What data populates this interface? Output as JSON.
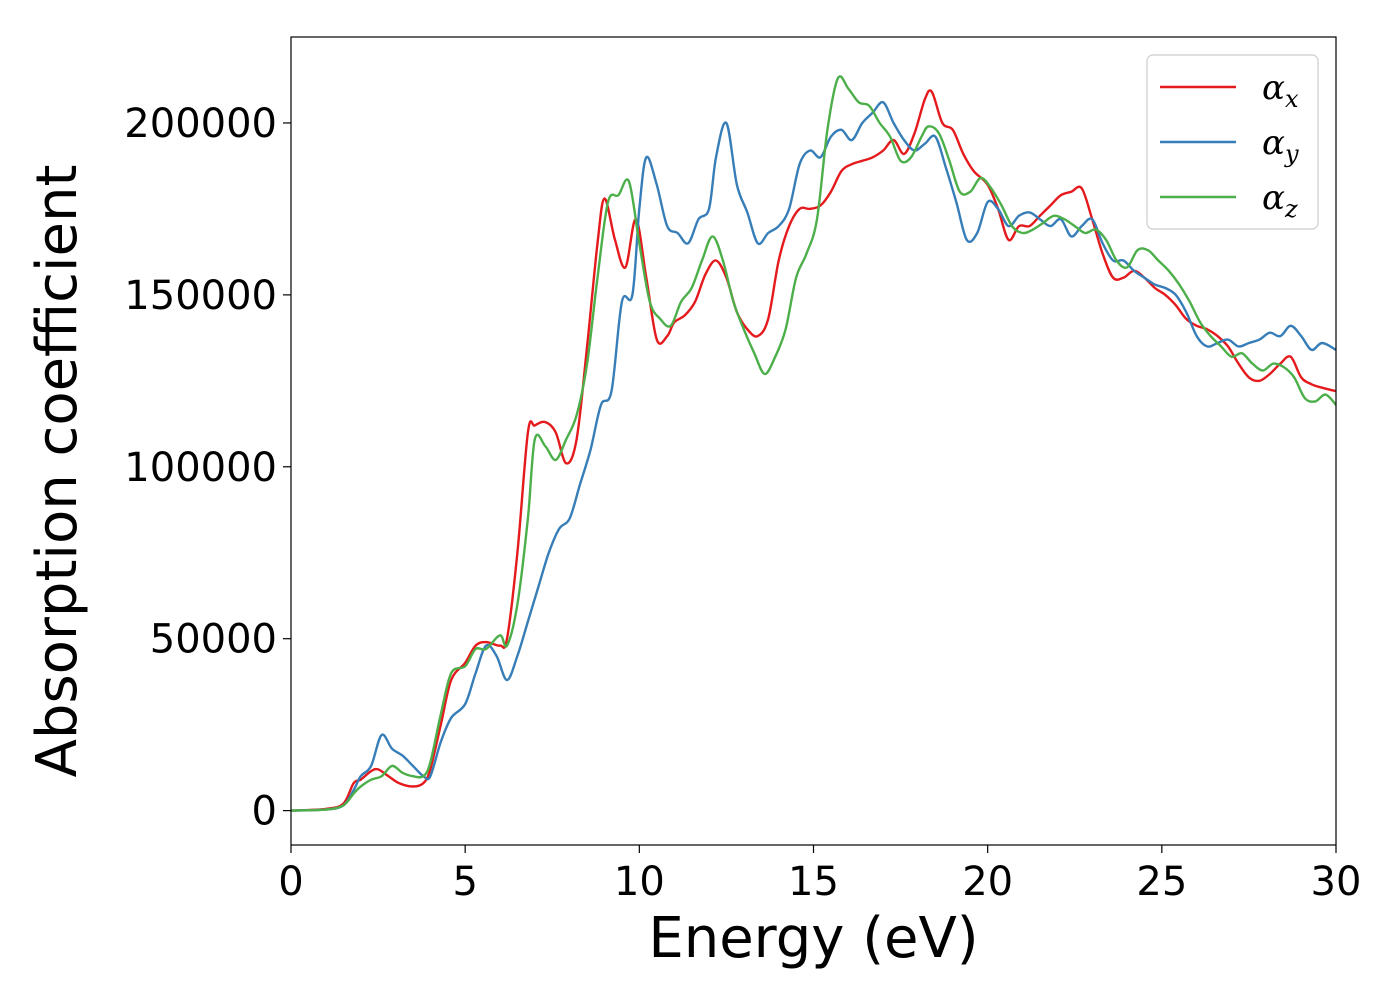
{
  "chart_data": {
    "type": "line",
    "title": "",
    "xlabel": "Energy (eV)",
    "ylabel": "Absorption coefficient",
    "xlim": [
      0,
      30
    ],
    "ylim": [
      -10000,
      225000
    ],
    "xticks": [
      0,
      5,
      10,
      15,
      20,
      25,
      30
    ],
    "xtick_labels": [
      "0",
      "5",
      "10",
      "15",
      "20",
      "25",
      "30"
    ],
    "yticks": [
      0,
      50000,
      100000,
      150000,
      200000
    ],
    "ytick_labels": [
      "0",
      "50000",
      "100000",
      "150000",
      "200000"
    ],
    "grid": false,
    "legend_position": "top-right",
    "series": [
      {
        "name": "α_x",
        "legend_symbol": "α",
        "legend_subscript": "x",
        "color": "#e41a1c",
        "x": [
          0,
          1,
          1.5,
          1.8,
          2.0,
          2.3,
          2.5,
          2.8,
          3.1,
          3.5,
          3.8,
          4.0,
          4.3,
          4.6,
          5.0,
          5.3,
          5.6,
          6.0,
          6.2,
          6.5,
          6.8,
          7.0,
          7.3,
          7.6,
          7.9,
          8.2,
          8.5,
          8.8,
          9.0,
          9.3,
          9.6,
          9.9,
          10.2,
          10.5,
          10.8,
          11.0,
          11.3,
          11.6,
          11.9,
          12.2,
          12.5,
          12.8,
          13.1,
          13.4,
          13.7,
          14.0,
          14.3,
          14.6,
          14.9,
          15.2,
          15.5,
          15.8,
          16.1,
          16.4,
          16.7,
          17.0,
          17.3,
          17.6,
          17.9,
          18.2,
          18.4,
          18.7,
          19.0,
          19.3,
          19.6,
          20.0,
          20.3,
          20.6,
          20.9,
          21.2,
          21.5,
          21.8,
          22.1,
          22.4,
          22.7,
          23.0,
          23.3,
          23.6,
          23.9,
          24.2,
          24.5,
          24.8,
          25.1,
          25.4,
          25.7,
          26.0,
          26.3,
          26.6,
          26.9,
          27.2,
          27.5,
          27.8,
          28.1,
          28.4,
          28.7,
          29.0,
          29.3,
          29.6,
          30.0
        ],
        "y": [
          0,
          500,
          2000,
          8000,
          9000,
          11500,
          12000,
          10000,
          8000,
          7000,
          8000,
          12000,
          25000,
          38000,
          43000,
          48000,
          49000,
          48000,
          50000,
          75000,
          110000,
          112000,
          113000,
          110000,
          101000,
          108000,
          135000,
          165000,
          178000,
          166000,
          158000,
          172000,
          155000,
          137000,
          138000,
          142000,
          144000,
          148000,
          156000,
          160000,
          155000,
          145000,
          140000,
          138000,
          143000,
          160000,
          170000,
          175000,
          175000,
          176000,
          180000,
          186000,
          188000,
          189000,
          190000,
          192000,
          195000,
          191000,
          197000,
          207000,
          209000,
          200000,
          198000,
          191000,
          186000,
          182000,
          175000,
          166000,
          170000,
          170000,
          173000,
          176000,
          179000,
          180000,
          181000,
          172000,
          162000,
          155000,
          155000,
          157000,
          155000,
          152000,
          150000,
          147000,
          143000,
          141000,
          140000,
          138000,
          135000,
          130000,
          126000,
          125000,
          127000,
          130000,
          132000,
          126000,
          124000,
          123000,
          122000
        ]
      },
      {
        "name": "α_y",
        "legend_symbol": "α",
        "legend_subscript": "y",
        "color": "#377eb8",
        "x": [
          0,
          1,
          1.5,
          1.8,
          2.0,
          2.3,
          2.6,
          2.9,
          3.2,
          3.5,
          3.8,
          4.0,
          4.3,
          4.6,
          5.0,
          5.3,
          5.6,
          5.9,
          6.2,
          6.5,
          6.8,
          7.1,
          7.4,
          7.7,
          8.0,
          8.3,
          8.6,
          8.9,
          9.2,
          9.5,
          9.8,
          10.0,
          10.2,
          10.5,
          10.8,
          11.1,
          11.4,
          11.7,
          12.0,
          12.2,
          12.5,
          12.8,
          13.1,
          13.4,
          13.7,
          14.0,
          14.3,
          14.6,
          14.9,
          15.2,
          15.5,
          15.8,
          16.1,
          16.4,
          16.7,
          17.0,
          17.3,
          17.6,
          17.9,
          18.2,
          18.5,
          18.8,
          19.1,
          19.4,
          19.7,
          20.0,
          20.3,
          20.6,
          20.9,
          21.2,
          21.5,
          21.8,
          22.1,
          22.4,
          22.7,
          23.0,
          23.3,
          23.6,
          23.9,
          24.2,
          24.5,
          24.8,
          25.1,
          25.4,
          25.7,
          26.0,
          26.3,
          26.6,
          26.9,
          27.2,
          27.5,
          27.8,
          28.1,
          28.4,
          28.7,
          29.0,
          29.3,
          29.6,
          30.0
        ],
        "y": [
          0,
          300,
          1500,
          6000,
          10000,
          13000,
          22000,
          18000,
          16000,
          13000,
          10000,
          10000,
          20000,
          27000,
          31000,
          40000,
          48000,
          45000,
          38000,
          45000,
          55000,
          65000,
          75000,
          82000,
          85000,
          95000,
          105000,
          118000,
          122000,
          148000,
          150000,
          175000,
          190000,
          182000,
          170000,
          168000,
          165000,
          172000,
          175000,
          190000,
          200000,
          182000,
          174000,
          165000,
          168000,
          170000,
          175000,
          188000,
          192000,
          190000,
          196000,
          198000,
          195000,
          200000,
          203000,
          206000,
          200000,
          195000,
          192000,
          194000,
          196000,
          187000,
          177000,
          166000,
          168000,
          177000,
          175000,
          170000,
          173000,
          174000,
          172000,
          170000,
          172000,
          167000,
          170000,
          172000,
          165000,
          160000,
          160000,
          157000,
          155000,
          153000,
          152000,
          150000,
          145000,
          138000,
          135000,
          136000,
          137000,
          135000,
          136000,
          137000,
          139000,
          138000,
          141000,
          138000,
          134000,
          136000,
          134000
        ]
      },
      {
        "name": "α_z",
        "legend_symbol": "α",
        "legend_subscript": "z",
        "color": "#4daf4a",
        "x": [
          0,
          1,
          1.5,
          1.8,
          2.0,
          2.3,
          2.6,
          2.9,
          3.2,
          3.5,
          3.8,
          4.0,
          4.3,
          4.6,
          5.0,
          5.3,
          5.6,
          6.0,
          6.2,
          6.5,
          6.8,
          7.0,
          7.3,
          7.6,
          7.9,
          8.2,
          8.5,
          8.8,
          9.1,
          9.4,
          9.7,
          10.0,
          10.3,
          10.6,
          10.9,
          11.2,
          11.5,
          11.8,
          12.1,
          12.4,
          12.7,
          13.0,
          13.3,
          13.6,
          13.9,
          14.2,
          14.5,
          14.8,
          15.1,
          15.4,
          15.7,
          16.0,
          16.3,
          16.6,
          16.9,
          17.2,
          17.5,
          17.8,
          18.1,
          18.3,
          18.6,
          18.9,
          19.2,
          19.5,
          19.8,
          20.1,
          20.4,
          20.7,
          21.0,
          21.3,
          21.6,
          21.9,
          22.2,
          22.5,
          22.8,
          23.1,
          23.4,
          23.7,
          24.0,
          24.3,
          24.6,
          24.9,
          25.2,
          25.5,
          25.8,
          26.1,
          26.4,
          26.7,
          27.0,
          27.3,
          27.6,
          27.9,
          28.2,
          28.5,
          28.8,
          29.1,
          29.4,
          29.7,
          30.0
        ],
        "y": [
          0,
          300,
          1500,
          5000,
          7000,
          9000,
          10000,
          13000,
          11000,
          10000,
          10000,
          14000,
          28000,
          40000,
          42000,
          47000,
          47000,
          51000,
          48000,
          60000,
          85000,
          108000,
          106000,
          102000,
          108000,
          115000,
          130000,
          155000,
          177000,
          179000,
          183000,
          165000,
          148000,
          143000,
          141000,
          148000,
          152000,
          160000,
          167000,
          160000,
          148000,
          140000,
          133000,
          127000,
          132000,
          140000,
          155000,
          162000,
          172000,
          198000,
          213000,
          210000,
          206000,
          205000,
          200000,
          196000,
          189000,
          190000,
          196000,
          199000,
          197000,
          189000,
          180000,
          180000,
          184000,
          181000,
          176000,
          170000,
          168000,
          169000,
          171000,
          173000,
          172000,
          170000,
          168000,
          169000,
          166000,
          160000,
          158000,
          163000,
          163000,
          160000,
          157000,
          153000,
          148000,
          142000,
          138000,
          135000,
          132000,
          133000,
          130000,
          128000,
          130000,
          129000,
          126000,
          120000,
          119000,
          121000,
          118000
        ]
      }
    ]
  }
}
